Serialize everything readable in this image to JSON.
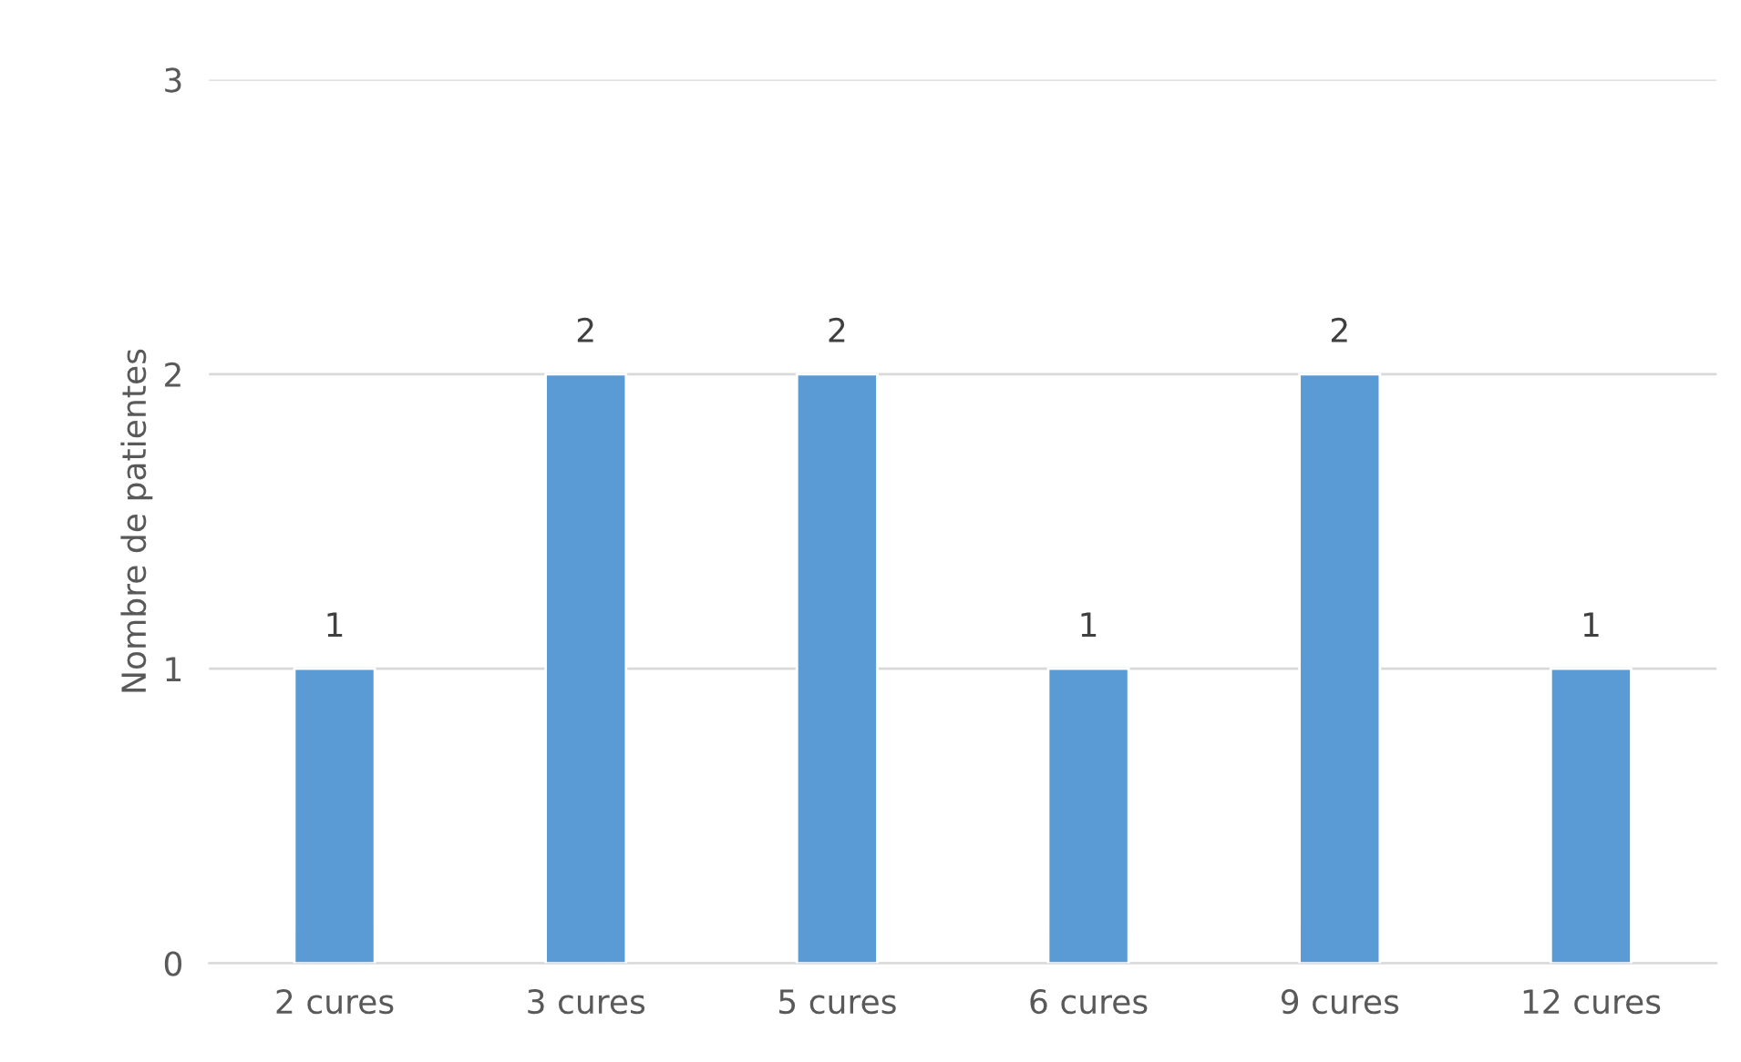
{
  "chart_data": {
    "type": "bar",
    "ylabel": "Nombre de patientes",
    "categories": [
      "2 cures",
      "3 cures",
      "5 cures",
      "6 cures",
      "9 cures",
      "12 cures"
    ],
    "values": [
      1,
      2,
      2,
      1,
      2,
      1
    ],
    "color": "#5b9bd5",
    "ylim": [
      0,
      3
    ],
    "yticks": [
      0,
      1,
      2,
      3
    ],
    "grid": "y",
    "data_labels": true
  }
}
